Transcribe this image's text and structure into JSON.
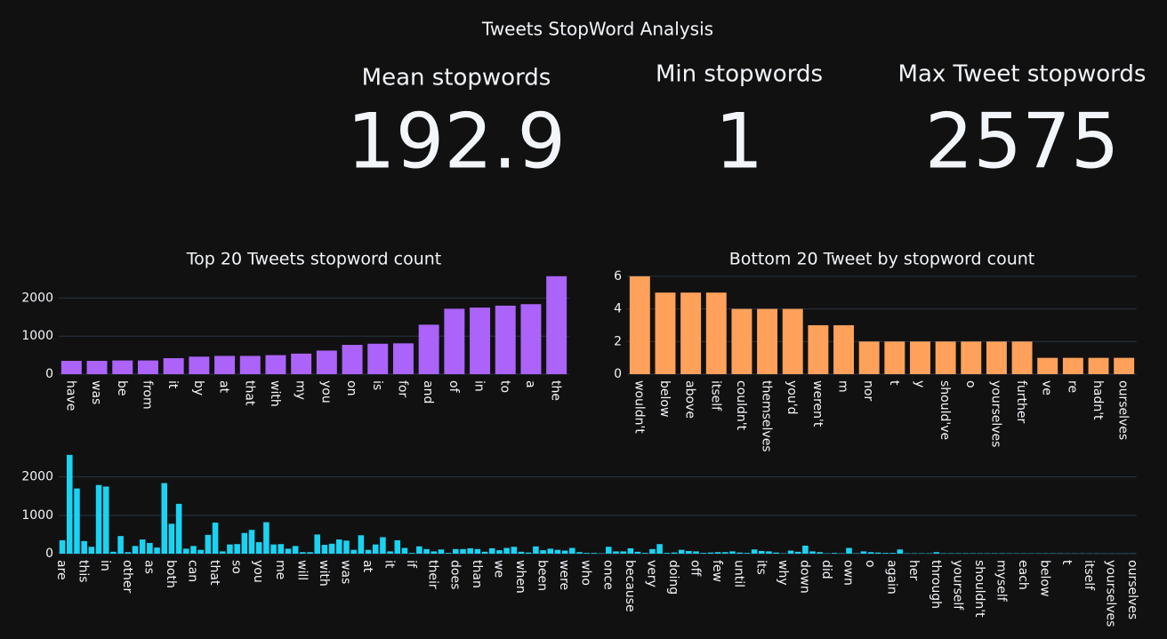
{
  "title": "Tweets StopWord Analysis",
  "indicators": [
    {
      "title": "Mean stopwords",
      "value": 192.9
    },
    {
      "title": "Min stopwords",
      "value": 1
    },
    {
      "title": "Max Tweet stopwords",
      "value": 2575
    }
  ],
  "chart_data": [
    {
      "type": "bar",
      "title": "Top 20 Tweets stopword count",
      "categories": [
        "have",
        "was",
        "be",
        "from",
        "it",
        "by",
        "at",
        "that",
        "with",
        "my",
        "you",
        "on",
        "is",
        "for",
        "and",
        "of",
        "in",
        "to",
        "a",
        "the"
      ],
      "values": [
        350,
        350,
        360,
        360,
        420,
        460,
        480,
        480,
        500,
        540,
        620,
        770,
        800,
        810,
        1300,
        1720,
        1750,
        1800,
        1840,
        2575
      ],
      "color": "#ab63fa",
      "ylim": [
        0,
        2710
      ],
      "yticks": [
        0,
        1000,
        2000
      ],
      "grid": true
    },
    {
      "type": "bar",
      "title": "Bottom 20 Tweet by stopword count",
      "categories": [
        "wouldn't",
        "below",
        "above",
        "itself",
        "couldn't",
        "themselves",
        "you'd",
        "weren't",
        "m",
        "nor",
        "t",
        "y",
        "should've",
        "o",
        "yourselves",
        "further",
        "ve",
        "re",
        "hadn't",
        "ourselves"
      ],
      "values": [
        6,
        5,
        5,
        5,
        4,
        4,
        4,
        3,
        3,
        2,
        2,
        2,
        2,
        2,
        2,
        2,
        1,
        1,
        1,
        1
      ],
      "color": "#ffa15a",
      "ylim": [
        0,
        6.32
      ],
      "yticks": [
        0,
        2,
        4,
        6
      ],
      "grid": true
    },
    {
      "type": "bar",
      "categories": [
        "are",
        null,
        null,
        "this",
        null,
        null,
        "in",
        null,
        null,
        "other",
        null,
        null,
        "as",
        null,
        null,
        "both",
        null,
        null,
        "can",
        null,
        null,
        "that",
        null,
        null,
        "so",
        null,
        null,
        "you",
        null,
        null,
        "me",
        null,
        null,
        "will",
        null,
        null,
        "with",
        null,
        null,
        "was",
        null,
        null,
        "at",
        null,
        null,
        "it",
        null,
        null,
        "if",
        null,
        null,
        "their",
        null,
        null,
        "does",
        null,
        null,
        "than",
        null,
        null,
        "we",
        null,
        null,
        "when",
        null,
        null,
        "been",
        null,
        null,
        "were",
        null,
        null,
        "who",
        null,
        null,
        "once",
        null,
        null,
        "because",
        null,
        null,
        "very",
        null,
        null,
        "doing",
        null,
        null,
        "off",
        null,
        null,
        "few",
        null,
        null,
        "until",
        null,
        null,
        "its",
        null,
        null,
        "why",
        null,
        null,
        "down",
        null,
        null,
        "did",
        null,
        null,
        "own",
        null,
        null,
        "o",
        null,
        null,
        "again",
        null,
        null,
        "her",
        null,
        null,
        "through",
        null,
        null,
        "yourself",
        null,
        null,
        "shouldn't",
        null,
        null,
        "myself",
        null,
        null,
        "each",
        null,
        null,
        "below",
        null,
        null,
        "t",
        null,
        null,
        "itself",
        null,
        null,
        "yourselves",
        null,
        null,
        "ourselves"
      ],
      "values": [
        350,
        2575,
        1700,
        330,
        180,
        1790,
        1750,
        50,
        460,
        40,
        200,
        370,
        280,
        160,
        1840,
        780,
        1300,
        130,
        200,
        100,
        490,
        810,
        60,
        240,
        250,
        540,
        620,
        300,
        820,
        240,
        250,
        130,
        200,
        40,
        40,
        500,
        230,
        260,
        370,
        340,
        100,
        480,
        100,
        240,
        430,
        60,
        350,
        150,
        20,
        190,
        120,
        60,
        110,
        20,
        120,
        120,
        140,
        120,
        50,
        140,
        90,
        150,
        180,
        50,
        30,
        190,
        90,
        130,
        100,
        80,
        150,
        40,
        20,
        20,
        10,
        180,
        60,
        60,
        140,
        50,
        20,
        120,
        250,
        20,
        30,
        100,
        70,
        60,
        20,
        30,
        40,
        40,
        60,
        30,
        20,
        110,
        70,
        60,
        30,
        10,
        80,
        50,
        210,
        60,
        40,
        10,
        20,
        10,
        150,
        10,
        60,
        40,
        30,
        20,
        20,
        110,
        10,
        10,
        10,
        10,
        40,
        10,
        10,
        10,
        10,
        10,
        10,
        10,
        10,
        10,
        8,
        8,
        8,
        8,
        8,
        8,
        8,
        8,
        6,
        6,
        6,
        6,
        6,
        5,
        5,
        5,
        5,
        5
      ],
      "color": "#19d3f3",
      "ylim": [
        0,
        2710
      ],
      "yticks": [
        0,
        1000,
        2000
      ],
      "grid": true
    }
  ]
}
